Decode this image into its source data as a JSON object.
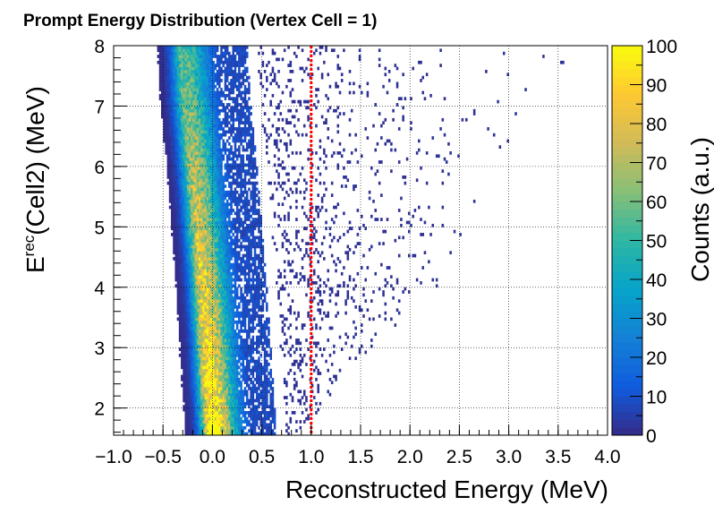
{
  "chart_data": {
    "type": "heatmap",
    "title": "Prompt Energy Distribution (Vertex Cell = 1)",
    "xlabel": "Reconstructed Energy (MeV)",
    "ylabel_prefix": "E",
    "ylabel_sup": "rec",
    "ylabel_suffix": "(Cell2) (MeV)",
    "colorbar_label": "Counts (a.u.)",
    "xlim": [
      -1.0,
      4.0
    ],
    "ylim": [
      1.55,
      8.0
    ],
    "zlim": [
      0,
      100
    ],
    "x_ticks": [
      -1.0,
      -0.5,
      0.0,
      0.5,
      1.0,
      1.5,
      2.0,
      2.5,
      3.0,
      3.5,
      4.0
    ],
    "x_tick_labels": [
      "−1.0",
      "−0.5",
      "0.0",
      "0.5",
      "1.0",
      "1.5",
      "2.0",
      "2.5",
      "3.0",
      "3.5",
      "4.0"
    ],
    "y_ticks": [
      2,
      3,
      4,
      5,
      6,
      7,
      8
    ],
    "y_tick_labels": [
      "2",
      "3",
      "4",
      "5",
      "6",
      "7",
      "8"
    ],
    "z_ticks": [
      0,
      10,
      20,
      30,
      40,
      50,
      60,
      70,
      80,
      90,
      100
    ],
    "z_tick_labels": [
      "0",
      "10",
      "20",
      "30",
      "40",
      "50",
      "60",
      "70",
      "80",
      "90",
      "100"
    ],
    "grid": true,
    "cut_line": {
      "x": 1.0,
      "color": "#ff0000",
      "style": "dotted"
    },
    "colormap": [
      "#352a87",
      "#0f5cdd",
      "#1481d6",
      "#06a4ca",
      "#2eb7a4",
      "#87bf77",
      "#d1bb59",
      "#fec832",
      "#f9fb0e"
    ],
    "band": {
      "ridge": [
        {
          "y": 1.6,
          "x": 0.0
        },
        {
          "y": 2.0,
          "x": -0.02
        },
        {
          "y": 3.0,
          "x": -0.06
        },
        {
          "y": 4.0,
          "x": -0.1
        },
        {
          "y": 5.0,
          "x": -0.15
        },
        {
          "y": 6.0,
          "x": -0.2
        },
        {
          "y": 7.0,
          "x": -0.26
        },
        {
          "y": 8.0,
          "x": -0.3
        }
      ],
      "peak_counts_at_bottom": 100,
      "peak_counts_at_top": 55,
      "tail_edge": [
        {
          "y": 1.6,
          "x": 0.9
        },
        {
          "y": 3.0,
          "x": 1.6
        },
        {
          "y": 4.0,
          "x": 2.3
        },
        {
          "y": 5.0,
          "x": 2.6
        },
        {
          "y": 6.0,
          "x": 2.9
        },
        {
          "y": 7.0,
          "x": 3.3
        },
        {
          "y": 8.0,
          "x": 3.7
        }
      ]
    }
  }
}
